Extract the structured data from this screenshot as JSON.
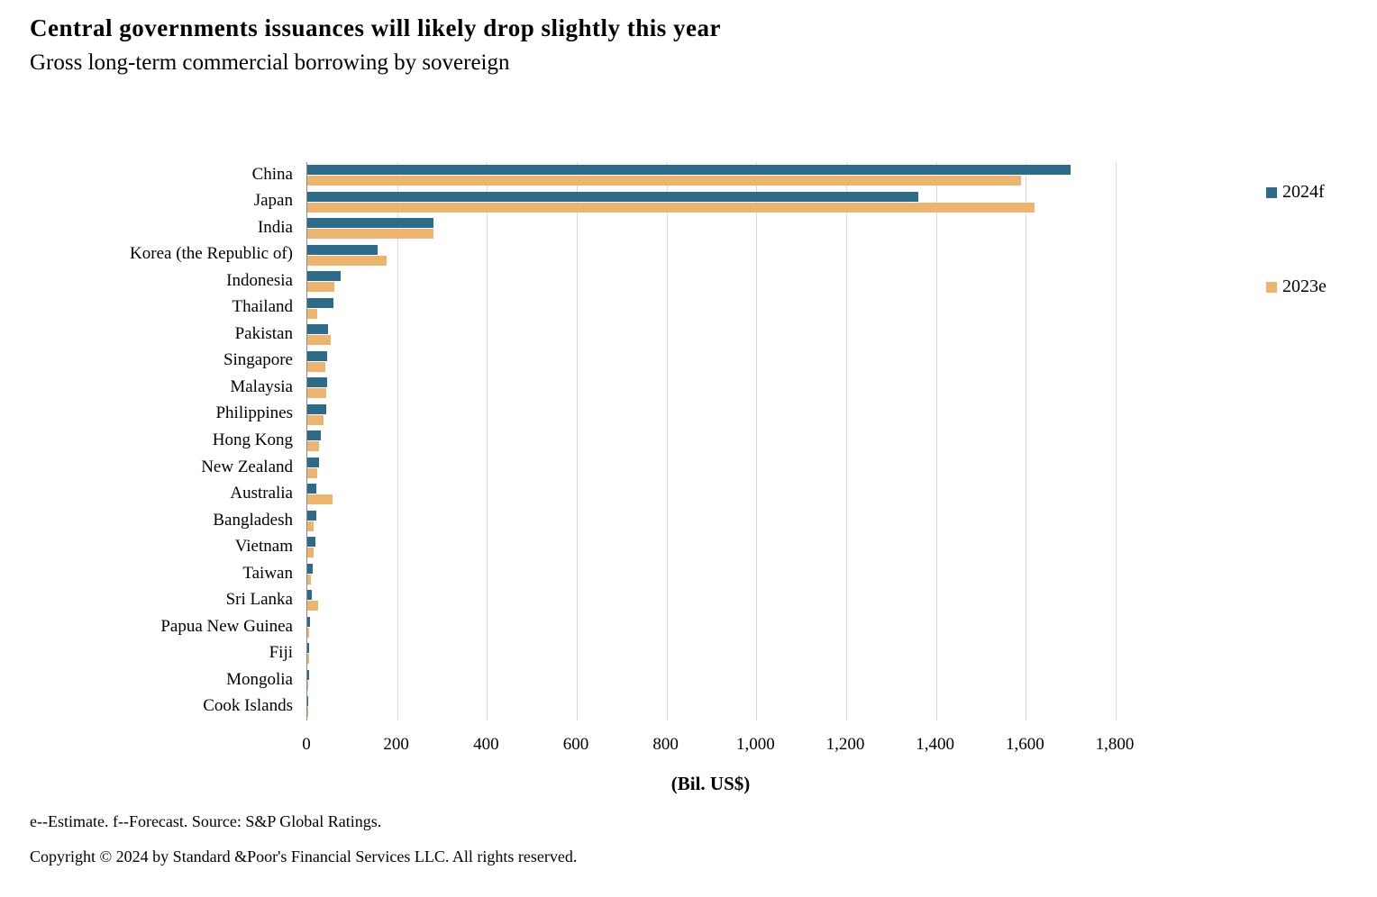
{
  "header": {
    "title": "Central governments issuances will likely drop slightly this year",
    "subtitle": "Gross long-term commercial borrowing by sovereign"
  },
  "footer": {
    "footnote": "e--Estimate. f--Forecast. Source: S&P Global Ratings.",
    "copyright": "Copyright © 2024 by Standard &Poor's Financial Services LLC. All rights reserved."
  },
  "chart_data": {
    "type": "bar",
    "orientation": "horizontal",
    "title": "Central governments issuances will likely drop slightly this year",
    "subtitle": "Gross long-term commercial borrowing by sovereign",
    "xlabel": "(Bil. US$)",
    "ylabel": "",
    "xlim": [
      0,
      1800
    ],
    "grid": true,
    "legend_position": "right",
    "tick_values": [
      0,
      200,
      400,
      600,
      800,
      1000,
      1200,
      1400,
      1600,
      1800
    ],
    "tick_labels": [
      "0",
      "200",
      "400",
      "600",
      "800",
      "1,000",
      "1,200",
      "1,400",
      "1,600",
      "1,800"
    ],
    "categories": [
      "China",
      "Japan",
      "India",
      "Korea (the Republic of)",
      "Indonesia",
      "Thailand",
      "Pakistan",
      "Singapore",
      "Malaysia",
      "Philippines",
      "Hong Kong",
      "New Zealand",
      "Australia",
      "Bangladesh",
      "Vietnam",
      "Taiwan",
      "Sri Lanka",
      "Papua New Guinea",
      "Fiji",
      "Mongolia",
      "Cook Islands"
    ],
    "series": [
      {
        "name": "2024f",
        "color": "#2d6b8a",
        "values": [
          1700,
          1360,
          281,
          157,
          74,
          58,
          46,
          44,
          44,
          42,
          30,
          26,
          20,
          20,
          18,
          12,
          10,
          6,
          4,
          4,
          1
        ]
      },
      {
        "name": "2023e",
        "color": "#ecb46c",
        "values": [
          1590,
          1620,
          280,
          177,
          60,
          22,
          52,
          40,
          42,
          36,
          26,
          22,
          56,
          14,
          14,
          8,
          24,
          4,
          4,
          2,
          0.5
        ]
      }
    ]
  }
}
